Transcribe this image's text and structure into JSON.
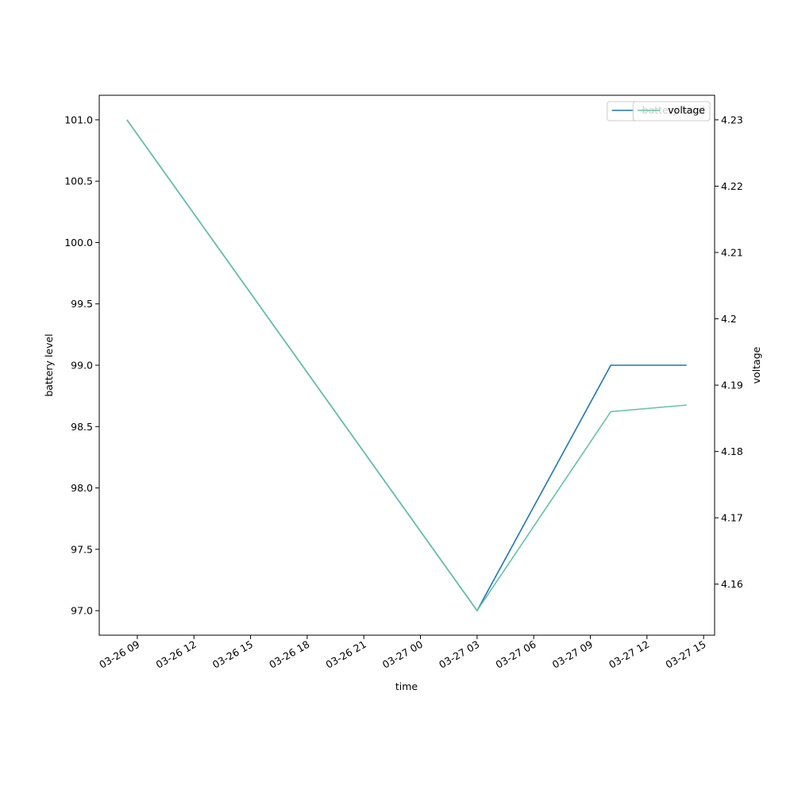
{
  "chart_data": {
    "type": "line",
    "x": [
      "03-26 08:27",
      "03-27 03:00",
      "03-27 10:05",
      "03-27 14:06"
    ],
    "xlim": [
      "03-26 06:59",
      "03-27 15:35"
    ],
    "xticks": [
      "03-26 09",
      "03-26 12",
      "03-26 15",
      "03-26 18",
      "03-26 21",
      "03-27 00",
      "03-27 03",
      "03-27 06",
      "03-27 09",
      "03-27 12",
      "03-27 15"
    ],
    "xlabel": "time",
    "ylabel": "battery level",
    "y2label": "voltage",
    "ylim": [
      96.8,
      101.2
    ],
    "yticks": [
      {
        "value": 97,
        "label": "97.0"
      },
      {
        "value": 97.5,
        "label": "97.5"
      },
      {
        "value": 98,
        "label": "98.0"
      },
      {
        "value": 98.5,
        "label": "98.5"
      },
      {
        "value": 99,
        "label": "99.0"
      },
      {
        "value": 99.5,
        "label": "99.5"
      },
      {
        "value": 100,
        "label": "100.0"
      },
      {
        "value": 100.5,
        "label": "100.5"
      },
      {
        "value": 101,
        "label": "101.0"
      }
    ],
    "y2lim": [
      4.1523,
      4.2337
    ],
    "y2ticks": [
      4.16,
      4.17,
      4.18,
      4.19,
      4.2,
      4.21,
      4.22,
      4.23
    ],
    "legend": "upper right",
    "series": [
      {
        "name": "battery level",
        "color": "#1f77b4",
        "values": [
          101,
          97,
          99,
          99
        ]
      },
      {
        "name": "voltage",
        "color": "#66c2a5",
        "axis": "y2",
        "values": [
          4.23,
          4.156,
          4.186,
          4.187
        ]
      }
    ]
  }
}
